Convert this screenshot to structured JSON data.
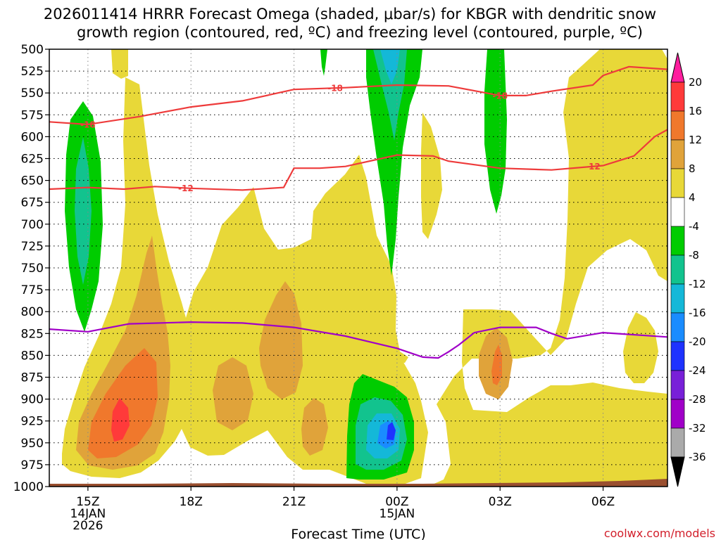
{
  "title": {
    "line1": "2026011414 HRRR Forecast Omega (shaded, μbar/s) for KBGR with dendritic snow",
    "line2": "growth region (contoured, red, ºC) and freezing level (contoured, purple, ºC)"
  },
  "credit": "coolwx.com/models",
  "chart_data": {
    "type": "heatmap",
    "title": "2026011414 HRRR Forecast Omega (shaded, μbar/s) for KBGR with dendritic snow growth region (contoured, red, ºC) and freezing level (contoured, purple, ºC)",
    "xlabel": "Forecast Time (UTC)",
    "ylabel": "",
    "x_range_hours": [
      -0.75,
      11.25
    ],
    "y_range_hPa": [
      500,
      1000
    ],
    "y_ticks": [
      500,
      525,
      550,
      575,
      600,
      625,
      650,
      675,
      700,
      725,
      750,
      775,
      800,
      825,
      850,
      875,
      900,
      925,
      950,
      975,
      1000
    ],
    "x_ticks": [
      {
        "hour": 0,
        "line1": "15Z",
        "line2": "14JAN",
        "line3": "2026"
      },
      {
        "hour": 2,
        "line1": "18Z",
        "line2": "",
        "line3": ""
      },
      {
        "hour": 4,
        "line1": "21Z",
        "line2": "",
        "line3": ""
      },
      {
        "hour": 6,
        "line1": "00Z",
        "line2": "15JAN",
        "line3": ""
      },
      {
        "hour": 8,
        "line1": "03Z",
        "line2": "",
        "line3": ""
      },
      {
        "hour": 10,
        "line1": "06Z",
        "line2": "",
        "line3": ""
      }
    ],
    "colorbar": {
      "labels": [
        "20",
        "16",
        "12",
        "8",
        "4",
        "-4",
        "-8",
        "-12",
        "-16",
        "-20",
        "-24",
        "-28",
        "-32",
        "-36"
      ],
      "bands": [
        {
          "from": 16,
          "to": 20,
          "color": "#ff3a3a"
        },
        {
          "from": 12,
          "to": 16,
          "color": "#f0782c"
        },
        {
          "from": 8,
          "to": 12,
          "color": "#e0a33a"
        },
        {
          "from": 4,
          "to": 8,
          "color": "#e8d838"
        },
        {
          "from": -4,
          "to": 4,
          "color": "#ffffff"
        },
        {
          "from": -8,
          "to": -4,
          "color": "#00cc00"
        },
        {
          "from": -12,
          "to": -8,
          "color": "#12c38e"
        },
        {
          "from": -16,
          "to": -12,
          "color": "#14b8d8"
        },
        {
          "from": -20,
          "to": -16,
          "color": "#1a8cff"
        },
        {
          "from": -24,
          "to": -20,
          "color": "#1e32ff"
        },
        {
          "from": -28,
          "to": -24,
          "color": "#7820d8"
        },
        {
          "from": -32,
          "to": -28,
          "color": "#a000c8"
        },
        {
          "from": -36,
          "to": -32,
          "color": "#aaaaaa"
        }
      ],
      "over_color": "#ff1e9e",
      "under_color": "#000000"
    },
    "contours": {
      "dgz_minus18": {
        "label": "-18",
        "color": "#ee3b3b",
        "points": [
          [
            -0.75,
            583
          ],
          [
            0,
            586
          ],
          [
            1,
            577
          ],
          [
            2,
            566
          ],
          [
            3,
            559
          ],
          [
            4,
            546
          ],
          [
            5,
            544
          ],
          [
            6,
            541
          ],
          [
            7,
            542
          ],
          [
            8,
            553
          ],
          [
            8.5,
            553
          ],
          [
            9,
            548
          ],
          [
            9.8,
            541
          ],
          [
            10,
            530
          ],
          [
            10.5,
            520
          ],
          [
            11.25,
            523
          ]
        ]
      },
      "dgz_minus12": {
        "label": "-12",
        "color": "#ee3b3b",
        "points": [
          [
            -0.75,
            660
          ],
          [
            0,
            658
          ],
          [
            0.7,
            660
          ],
          [
            1.3,
            657
          ],
          [
            2,
            659
          ],
          [
            3,
            661
          ],
          [
            3.8,
            658
          ],
          [
            4,
            636
          ],
          [
            4.5,
            636
          ],
          [
            5,
            634
          ],
          [
            6,
            621
          ],
          [
            6.7,
            622
          ],
          [
            7,
            628
          ],
          [
            8,
            636
          ],
          [
            9,
            638
          ],
          [
            10,
            633
          ],
          [
            10.6,
            622
          ],
          [
            11,
            600
          ],
          [
            11.25,
            592
          ]
        ]
      },
      "freezing_level_0C": {
        "label": "",
        "color": "#a000c8",
        "points": [
          [
            -0.75,
            820
          ],
          [
            0,
            823
          ],
          [
            0.8,
            814
          ],
          [
            2,
            812
          ],
          [
            3,
            813
          ],
          [
            4,
            818
          ],
          [
            5,
            828
          ],
          [
            6,
            842
          ],
          [
            6.5,
            852
          ],
          [
            6.8,
            853
          ],
          [
            7,
            846
          ],
          [
            7.2,
            838
          ],
          [
            7.5,
            824
          ],
          [
            8,
            818
          ],
          [
            8.7,
            818
          ],
          [
            9,
            825
          ],
          [
            9.3,
            831
          ],
          [
            10,
            824
          ],
          [
            11.25,
            829
          ]
        ]
      }
    },
    "shaded_features": [
      {
        "name": "upward motion core near 15Z",
        "peak": 16,
        "hour": 0.7,
        "pressure_hPa": 893
      },
      {
        "name": "strong downward motion near 00Z",
        "peak": -24,
        "hour": 5.9,
        "pressure_hPa": 918
      },
      {
        "name": "downward motion aloft near 15Z",
        "peak": -12,
        "hour": -0.1,
        "pressure_hPa": 630
      },
      {
        "name": "downward motion column near 00Z aloft",
        "peak": -16,
        "hour": 5.9,
        "pressure_hPa": 520
      },
      {
        "name": "downward motion column near 03Z aloft",
        "peak": -8,
        "hour": 8,
        "pressure_hPa": 560
      },
      {
        "name": "upward motion near 03Z low levels",
        "peak": 12,
        "hour": 8,
        "pressure_hPa": 830
      }
    ]
  }
}
